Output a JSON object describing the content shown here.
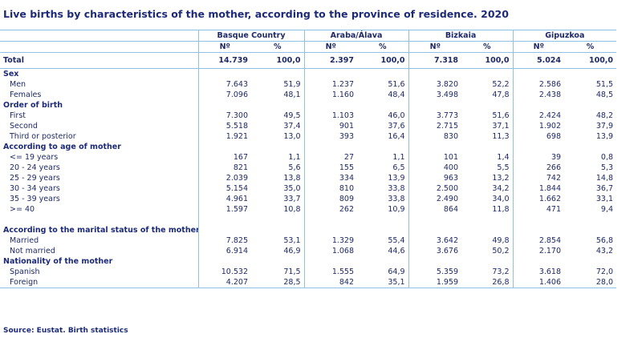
{
  "title": "Live births by characteristics of the mother, according to the province of residence. 2020",
  "source": "Source: Eustat. Birth statistics",
  "regions": [
    "Basque Country",
    "Araba/Álava",
    "Bizkaia",
    "Gipuzkoa"
  ],
  "sub_headers": [
    "Nº",
    "%"
  ],
  "total": {
    "label": "Total",
    "values": [
      "14.739",
      "100,0",
      "2.397",
      "100,0",
      "7.318",
      "100,0",
      "5.024",
      "100,0"
    ]
  },
  "sections": [
    {
      "title": "Sex",
      "rows": [
        {
          "label": "Men",
          "values": [
            "7.643",
            "51,9",
            "1.237",
            "51,6",
            "3.820",
            "52,2",
            "2.586",
            "51,5"
          ]
        },
        {
          "label": "Females",
          "values": [
            "7.096",
            "48,1",
            "1.160",
            "48,4",
            "3.498",
            "47,8",
            "2.438",
            "48,5"
          ]
        }
      ]
    },
    {
      "title": "Order of birth",
      "rows": [
        {
          "label": "First",
          "values": [
            "7.300",
            "49,5",
            "1.103",
            "46,0",
            "3.773",
            "51,6",
            "2.424",
            "48,2"
          ]
        },
        {
          "label": "Second",
          "values": [
            "5.518",
            "37,4",
            "901",
            "37,6",
            "2.715",
            "37,1",
            "1.902",
            "37,9"
          ]
        },
        {
          "label": "Third or posterior",
          "values": [
            "1.921",
            "13,0",
            "393",
            "16,4",
            "830",
            "11,3",
            "698",
            "13,9"
          ]
        }
      ]
    },
    {
      "title": "According to age of mother",
      "rows": [
        {
          "label": "<= 19 years",
          "values": [
            "167",
            "1,1",
            "27",
            "1,1",
            "101",
            "1,4",
            "39",
            "0,8"
          ]
        },
        {
          "label": "20 - 24 years",
          "values": [
            "821",
            "5,6",
            "155",
            "6,5",
            "400",
            "5,5",
            "266",
            "5,3"
          ]
        },
        {
          "label": "25 - 29 years",
          "values": [
            "2.039",
            "13,8",
            "334",
            "13,9",
            "963",
            "13,2",
            "742",
            "14,8"
          ]
        },
        {
          "label": "30 - 34 years",
          "values": [
            "5.154",
            "35,0",
            "810",
            "33,8",
            "2.500",
            "34,2",
            "1.844",
            "36,7"
          ]
        },
        {
          "label": "35 - 39 years",
          "values": [
            "4.961",
            "33,7",
            "809",
            "33,8",
            "2.490",
            "34,0",
            "1.662",
            "33,1"
          ]
        },
        {
          "label": ">= 40",
          "values": [
            "1.597",
            "10,8",
            "262",
            "10,9",
            "864",
            "11,8",
            "471",
            "9,4"
          ]
        }
      ]
    },
    {
      "title": "According to the marital status of the mother",
      "rows": [
        {
          "label": "Married",
          "values": [
            "7.825",
            "53,1",
            "1.329",
            "55,4",
            "3.642",
            "49,8",
            "2.854",
            "56,8"
          ]
        },
        {
          "label": "Not married",
          "values": [
            "6.914",
            "46,9",
            "1.068",
            "44,6",
            "3.676",
            "50,2",
            "2.170",
            "43,2"
          ]
        }
      ]
    },
    {
      "title": "Nationality of the mother",
      "rows": [
        {
          "label": "Spanish",
          "values": [
            "10.532",
            "71,5",
            "1.555",
            "64,9",
            "5.359",
            "73,2",
            "3.618",
            "72,0"
          ]
        },
        {
          "label": "Foreign",
          "values": [
            "4.207",
            "28,5",
            "842",
            "35,1",
            "1.959",
            "26,8",
            "1.406",
            "28,0"
          ]
        }
      ]
    }
  ]
}
